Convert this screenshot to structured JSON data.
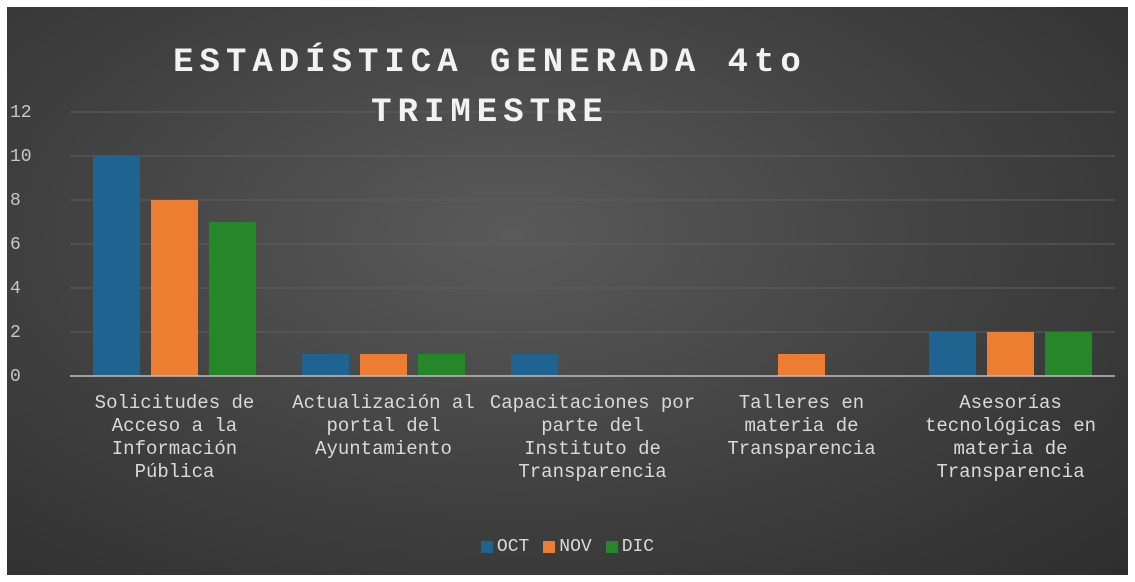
{
  "chart_data": {
    "type": "bar",
    "title": "ESTADÍSTICA GENERADA 4to TRIMESTRE",
    "categories": [
      "Solicitudes de Acceso a la Información Pública",
      "Actualización al portal del Ayuntamiento",
      "Capacitaciones por parte del Instituto de Transparencia",
      "Talleres en materia de Transparencia",
      "Asesorías tecnológicas en materia de Transparencia"
    ],
    "series": [
      {
        "name": "OCT",
        "color": "#1f6391",
        "values": [
          10,
          1,
          1,
          0,
          2
        ]
      },
      {
        "name": "NOV",
        "color": "#ed7d31",
        "values": [
          8,
          1,
          0,
          1,
          2
        ]
      },
      {
        "name": "DIC",
        "color": "#25862a",
        "values": [
          7,
          1,
          0,
          0,
          2
        ]
      }
    ],
    "ylim": [
      0,
      12
    ],
    "yticks": [
      0,
      2,
      4,
      6,
      8,
      10,
      12
    ],
    "grid": true,
    "legend": "bottom"
  }
}
